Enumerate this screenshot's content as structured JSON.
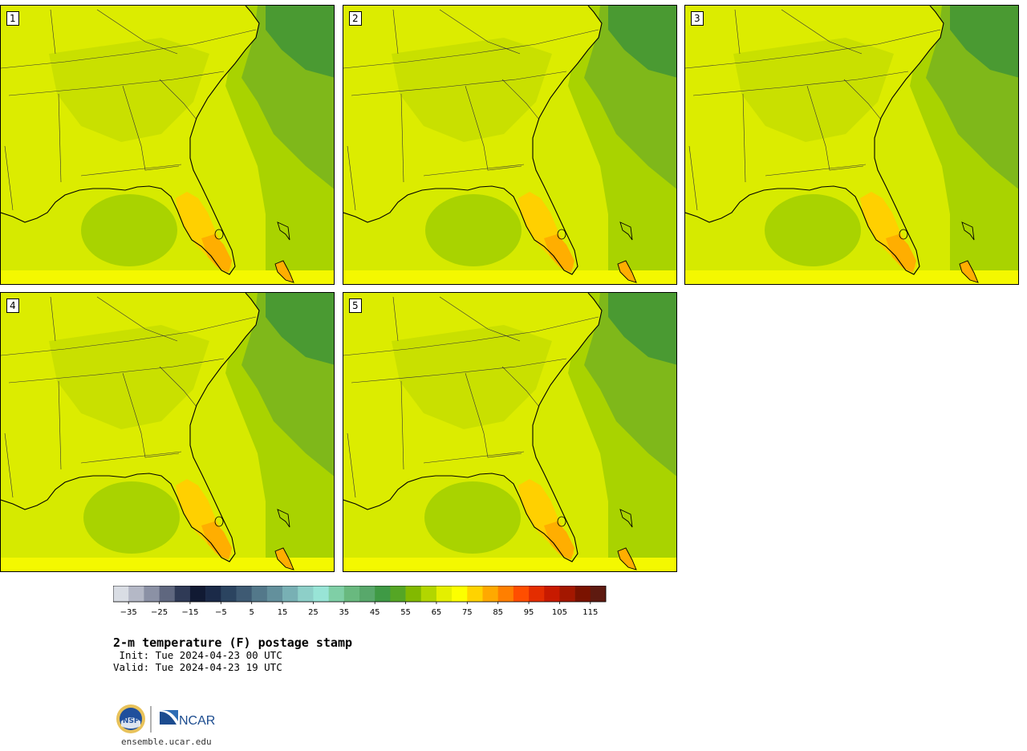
{
  "panels": [
    {
      "label": "1"
    },
    {
      "label": "2"
    },
    {
      "label": "3"
    },
    {
      "label": "4"
    },
    {
      "label": "5"
    }
  ],
  "colorbar": {
    "colors": [
      "#d9dde4",
      "#b4b8c6",
      "#8b91a5",
      "#5f677f",
      "#2f3a56",
      "#111a33",
      "#1b2a48",
      "#2b4460",
      "#3e5a73",
      "#53788a",
      "#63909c",
      "#78b0b4",
      "#8dcfc8",
      "#98e4d6",
      "#7fcfa6",
      "#69b97f",
      "#58a86b",
      "#3f9a45",
      "#55a625",
      "#82b900",
      "#b2d600",
      "#e4ef00",
      "#fcff00",
      "#ffd300",
      "#ffa900",
      "#ff7f00",
      "#ff4e00",
      "#e42d00",
      "#c81a00",
      "#a31700",
      "#7a1200",
      "#5e1a10"
    ],
    "tick_labels": [
      "−35",
      "−25",
      "−15",
      "−5",
      "5",
      "15",
      "25",
      "35",
      "45",
      "55",
      "65",
      "75",
      "85",
      "95",
      "105",
      "115"
    ],
    "min": -40,
    "max": 120,
    "step": 5
  },
  "title": "2-m temperature (F) postage stamp",
  "init_line": " Init: Tue 2024-04-23 00 UTC",
  "valid_line": "Valid: Tue 2024-04-23 19 UTC",
  "footer": {
    "nsf_logo": "NSF",
    "ncar_logo": "NCAR",
    "site": "ensemble.ucar.edu"
  },
  "colors": {
    "land_base": "#dcec00",
    "land_mid": "#c3dc00",
    "ocean_warm": "#d6ea00",
    "ocean_mid": "#a9d300",
    "ocean_cool": "#7fb81a",
    "ocean_cold": "#4a9a32",
    "florida_warm": "#ffd000",
    "florida_hot": "#ffae00",
    "coast": "#000000"
  }
}
